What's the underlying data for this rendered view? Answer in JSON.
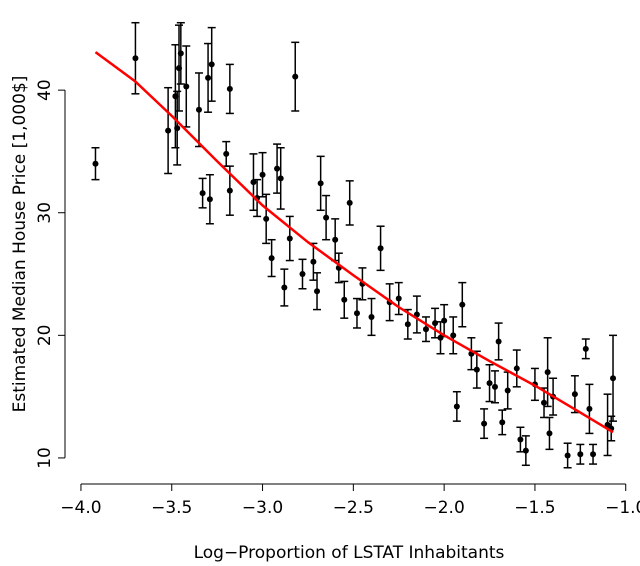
{
  "chart_data": {
    "type": "scatter",
    "x_label": "Log−Proportion of LSTAT Inhabitants",
    "y_label": "Estimated Median House Price [1,000$]",
    "xlim": [
      -4.03,
      -0.96
    ],
    "ylim": [
      8.2,
      46.7
    ],
    "xticks": [
      {
        "value": -4.0,
        "label": "−4.0"
      },
      {
        "value": -3.5,
        "label": "−3.5"
      },
      {
        "value": -3.0,
        "label": "−3.0"
      },
      {
        "value": -2.5,
        "label": "−2.5"
      },
      {
        "value": -2.0,
        "label": "−2.0"
      },
      {
        "value": -1.5,
        "label": "−1.5"
      },
      {
        "value": -1.0,
        "label": "−1.0"
      }
    ],
    "yticks": [
      10,
      20,
      30,
      40
    ],
    "series": [
      {
        "type": "scatter",
        "color": "#000000",
        "x": [
          -3.92,
          -3.7,
          -3.52,
          -3.48,
          -3.46,
          -3.45,
          -3.47,
          -3.42,
          -3.35,
          -3.33,
          -3.3,
          -3.28,
          -3.29,
          -3.18,
          -3.2,
          -3.18,
          -3.05,
          -3.03,
          -3.0,
          -2.98,
          -2.95,
          -2.92,
          -2.9,
          -2.88,
          -2.85,
          -2.82,
          -2.78,
          -2.72,
          -2.7,
          -2.68,
          -2.65,
          -2.6,
          -2.58,
          -2.55,
          -2.52,
          -2.48,
          -2.45,
          -2.4,
          -2.35,
          -2.3,
          -2.25,
          -2.2,
          -2.15,
          -2.1,
          -2.05,
          -2.02,
          -2.0,
          -1.95,
          -1.93,
          -1.9,
          -1.85,
          -1.82,
          -1.78,
          -1.75,
          -1.72,
          -1.7,
          -1.68,
          -1.65,
          -1.6,
          -1.58,
          -1.55,
          -1.5,
          -1.45,
          -1.43,
          -1.42,
          -1.4,
          -1.32,
          -1.28,
          -1.25,
          -1.22,
          -1.2,
          -1.18,
          -1.1,
          -1.07,
          -1.08
        ],
        "values": [
          34.0,
          42.6,
          36.7,
          39.5,
          41.8,
          43.0,
          36.9,
          40.3,
          38.4,
          31.6,
          41.0,
          42.1,
          31.1,
          40.1,
          34.8,
          31.8,
          32.5,
          31.2,
          33.1,
          29.5,
          26.3,
          33.6,
          32.8,
          23.9,
          27.9,
          41.1,
          25.0,
          26.0,
          23.6,
          32.4,
          29.6,
          27.8,
          25.5,
          22.9,
          30.8,
          21.8,
          24.2,
          21.5,
          27.1,
          22.7,
          23.0,
          20.9,
          21.7,
          20.5,
          21.0,
          19.8,
          21.2,
          20.0,
          14.2,
          22.5,
          18.5,
          17.2,
          12.8,
          16.1,
          15.8,
          19.5,
          12.9,
          15.5,
          17.3,
          11.5,
          10.6,
          16.0,
          14.5,
          17.0,
          12.0,
          15.0,
          10.2,
          15.2,
          10.3,
          18.9,
          14.0,
          10.3,
          12.7,
          16.5,
          12.4
        ],
        "errors": [
          1.3,
          2.9,
          3.5,
          4.2,
          3.5,
          2.5,
          3.0,
          3.3,
          3.0,
          1.2,
          2.8,
          3.0,
          2.0,
          2.0,
          1.0,
          2.0,
          2.3,
          1.5,
          1.8,
          2.0,
          1.5,
          2.0,
          2.5,
          1.5,
          1.8,
          2.8,
          1.2,
          1.5,
          1.5,
          2.2,
          1.8,
          1.7,
          1.2,
          1.5,
          1.8,
          1.2,
          1.3,
          1.5,
          1.8,
          1.5,
          1.3,
          1.2,
          1.5,
          1.0,
          1.2,
          1.3,
          1.3,
          1.5,
          1.2,
          1.8,
          1.3,
          1.5,
          1.2,
          1.5,
          1.3,
          1.5,
          1.0,
          1.5,
          1.5,
          1.0,
          1.2,
          1.3,
          1.2,
          2.8,
          1.3,
          1.5,
          1.0,
          1.5,
          0.8,
          0.8,
          2.0,
          0.8,
          2.5,
          3.5,
          1.0
        ]
      },
      {
        "type": "line",
        "color": "#ff0000",
        "x": [
          -3.92,
          -3.7,
          -3.5,
          -3.25,
          -3.0,
          -2.75,
          -2.5,
          -2.25,
          -2.0,
          -1.75,
          -1.5,
          -1.25,
          -1.07
        ],
        "values": [
          43.1,
          40.7,
          37.9,
          34.2,
          30.6,
          27.6,
          24.9,
          22.3,
          20.0,
          17.9,
          15.9,
          13.7,
          12.1
        ]
      }
    ]
  }
}
